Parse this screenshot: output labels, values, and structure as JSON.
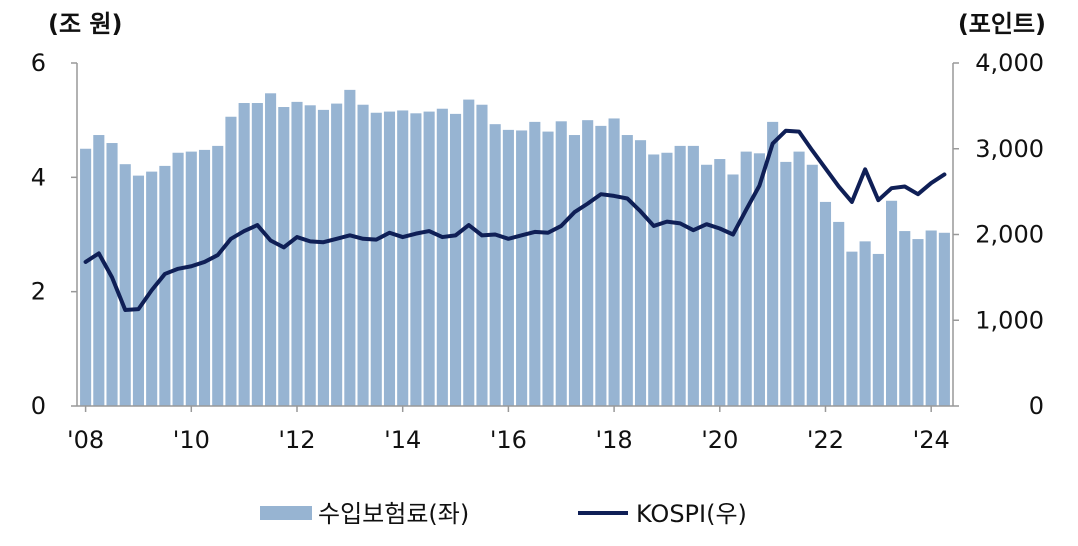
{
  "chart_data": {
    "type": "bar+line",
    "title": "",
    "left_axis": {
      "unit_label": "(조 원)",
      "ylim": [
        0,
        6
      ],
      "ticks": [
        0,
        2,
        4,
        6
      ],
      "tick_labels": [
        "0",
        "2",
        "4",
        "6"
      ]
    },
    "right_axis": {
      "unit_label": "(포인트)",
      "ylim": [
        0,
        4000
      ],
      "ticks": [
        0,
        1000,
        2000,
        3000,
        4000
      ],
      "tick_labels": [
        "0",
        "1,000",
        "2,000",
        "3,000",
        "4,000"
      ]
    },
    "x_axis": {
      "tick_labels": [
        "'08",
        "'10",
        "'12",
        "'14",
        "'16",
        "'18",
        "'20",
        "'22",
        "'24"
      ],
      "tick_quarter_index": [
        0,
        8,
        16,
        24,
        32,
        40,
        48,
        56,
        64
      ]
    },
    "legend": {
      "position": "bottom-center"
    },
    "colors": {
      "bar": "#97b4d2",
      "line": "#0f1f56",
      "axis": "#999999"
    },
    "series": [
      {
        "name": "수입보험료(좌)",
        "type": "bar",
        "axis": "left",
        "values": [
          4.5,
          4.74,
          4.6,
          4.23,
          4.03,
          4.1,
          4.2,
          4.43,
          4.45,
          4.48,
          4.55,
          5.06,
          5.3,
          5.3,
          5.47,
          5.23,
          5.32,
          5.26,
          5.18,
          5.29,
          5.53,
          5.27,
          5.13,
          5.15,
          5.17,
          5.12,
          5.15,
          5.2,
          5.11,
          5.36,
          5.27,
          4.93,
          4.83,
          4.82,
          4.97,
          4.8,
          4.98,
          4.74,
          5.0,
          4.9,
          5.03,
          4.74,
          4.65,
          4.4,
          4.43,
          4.55,
          4.55,
          4.22,
          4.32,
          4.05,
          4.45,
          4.42,
          4.97,
          4.27,
          4.45,
          4.22,
          3.57,
          3.22,
          2.7,
          2.88,
          2.66,
          3.59,
          3.06,
          2.92,
          3.07,
          3.03
        ]
      },
      {
        "name": "KOSPI(우)",
        "type": "line",
        "axis": "right",
        "values": [
          1680,
          1780,
          1500,
          1120,
          1130,
          1350,
          1540,
          1600,
          1630,
          1680,
          1760,
          1950,
          2040,
          2110,
          1930,
          1850,
          1970,
          1920,
          1910,
          1950,
          1990,
          1950,
          1940,
          2020,
          1970,
          2010,
          2040,
          1970,
          1990,
          2110,
          1990,
          2000,
          1950,
          1990,
          2030,
          2020,
          2100,
          2260,
          2360,
          2470,
          2450,
          2420,
          2270,
          2100,
          2150,
          2130,
          2050,
          2120,
          2070,
          2000,
          2290,
          2570,
          3060,
          3210,
          3200,
          2980,
          2770,
          2560,
          2380,
          2760,
          2400,
          2540,
          2560,
          2470,
          2600,
          2700
        ]
      }
    ]
  }
}
